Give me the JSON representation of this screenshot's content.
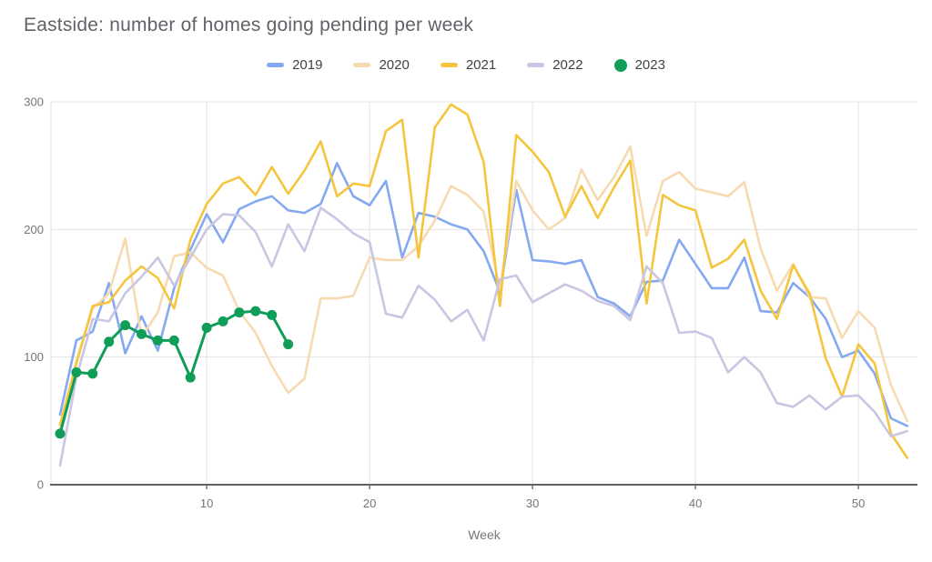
{
  "chart_data": {
    "type": "line",
    "title": "Eastside: number of homes going pending per week",
    "xlabel": "Week",
    "x_ticks": [
      10,
      20,
      30,
      40,
      50
    ],
    "y_ticks": [
      0,
      100,
      200,
      300
    ],
    "xlim": [
      1,
      53
    ],
    "ylim": [
      0,
      300
    ],
    "grid": true,
    "legend_position": "top",
    "colors": {
      "grid": "#e3e3e3",
      "axis": "#616161",
      "tick_label": "#757575",
      "title": "#5f6368",
      "legend_label": "#424242",
      "background": "#ffffff"
    },
    "series": [
      {
        "name": "2019",
        "color": "#84a9f1",
        "style": "line",
        "x_start": 1,
        "values": [
          55,
          113,
          120,
          158,
          103,
          132,
          105,
          154,
          184,
          212,
          190,
          216,
          222,
          226,
          215,
          213,
          220,
          252,
          226,
          219,
          238,
          178,
          213,
          210,
          204,
          200,
          183,
          151,
          231,
          176,
          175,
          173,
          176,
          147,
          142,
          132,
          159,
          160,
          192,
          173,
          154,
          154,
          178,
          136,
          135,
          158,
          147,
          130,
          100,
          105,
          87,
          52,
          46
        ]
      },
      {
        "name": "2020",
        "color": "#f7dab0",
        "style": "line",
        "x_start": 1,
        "values": [
          45,
          97,
          138,
          150,
          193,
          116,
          135,
          179,
          182,
          170,
          164,
          136,
          119,
          93,
          72,
          83,
          146,
          146,
          148,
          178,
          176,
          176,
          187,
          207,
          234,
          227,
          214,
          153,
          238,
          215,
          200,
          209,
          247,
          223,
          241,
          265,
          195,
          238,
          245,
          232,
          229,
          226,
          237,
          185,
          152,
          173,
          147,
          146,
          115,
          136,
          123,
          78,
          50
        ]
      },
      {
        "name": "2021",
        "color": "#f5c53d",
        "style": "line",
        "x_start": 1,
        "values": [
          47,
          95,
          140,
          143,
          160,
          171,
          162,
          138,
          192,
          220,
          236,
          241,
          227,
          249,
          228,
          246,
          269,
          226,
          236,
          234,
          277,
          286,
          178,
          280,
          298,
          290,
          253,
          140,
          274,
          261,
          245,
          210,
          234,
          209,
          233,
          254,
          142,
          227,
          219,
          215,
          170,
          177,
          192,
          152,
          130,
          172,
          150,
          99,
          69,
          110,
          95,
          40,
          21
        ]
      },
      {
        "name": "2022",
        "color": "#c8c6e2",
        "style": "line",
        "x_start": 1,
        "values": [
          15,
          84,
          130,
          128,
          150,
          163,
          178,
          156,
          178,
          200,
          212,
          211,
          198,
          171,
          204,
          183,
          217,
          208,
          197,
          190,
          134,
          131,
          156,
          145,
          128,
          137,
          113,
          161,
          164,
          143,
          150,
          157,
          152,
          144,
          140,
          129,
          171,
          158,
          119,
          120,
          115,
          88,
          100,
          88,
          64,
          61,
          70,
          59,
          69,
          70,
          57,
          38,
          42
        ]
      },
      {
        "name": "2023",
        "color": "#0f9d58",
        "style": "line+markers",
        "x_start": 1,
        "values": [
          40,
          88,
          87,
          112,
          125,
          118,
          113,
          113,
          84,
          123,
          128,
          135,
          136,
          133,
          110
        ]
      }
    ]
  }
}
